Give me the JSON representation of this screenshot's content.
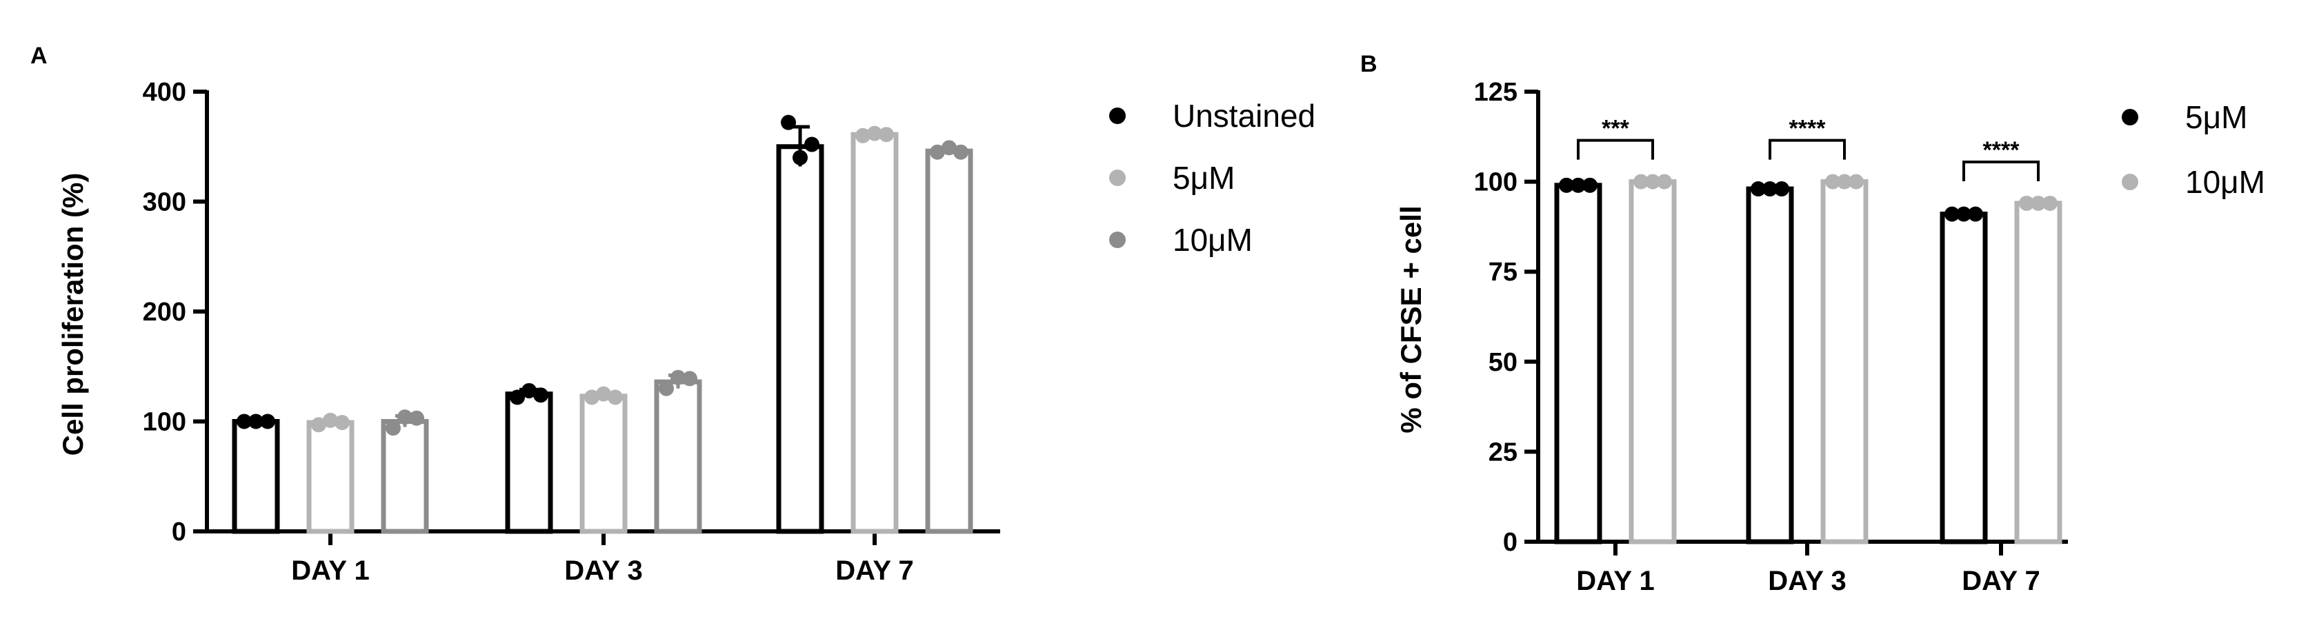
{
  "chart_data": [
    {
      "panel": "A",
      "type": "bar",
      "categories": [
        "DAY 1",
        "DAY 3",
        "DAY 7"
      ],
      "ylabel": "Cell proliferation (%)",
      "xlabel": "",
      "ylim": [
        0,
        400
      ],
      "yticks": [
        0,
        100,
        200,
        300,
        400
      ],
      "legend_position": "right",
      "series": [
        {
          "name": "Unstained",
          "color": "#000000",
          "values": [
            100,
            125,
            350
          ],
          "errors": [
            0,
            4,
            18
          ],
          "points": [
            [
              100,
              100,
              100
            ],
            [
              122,
              128,
              124
            ],
            [
              372,
              340,
              352
            ]
          ]
        },
        {
          "name": "5μM",
          "color": "#b3b3b3",
          "values": [
            99,
            123,
            361
          ],
          "errors": [
            2,
            2,
            3
          ],
          "points": [
            [
              97,
              101,
              99
            ],
            [
              122,
              125,
              122
            ],
            [
              360,
              362,
              361
            ]
          ]
        },
        {
          "name": "10μM",
          "color": "#8c8c8c",
          "values": [
            100,
            136,
            346
          ],
          "errors": [
            5,
            6,
            3
          ],
          "points": [
            [
              94,
              104,
              103
            ],
            [
              130,
              140,
              139
            ],
            [
              345,
              349,
              345
            ]
          ]
        }
      ]
    },
    {
      "panel": "B",
      "type": "bar",
      "categories": [
        "DAY 1",
        "DAY 3",
        "DAY 7"
      ],
      "ylabel": "% of CFSE + cell",
      "xlabel": "",
      "ylim": [
        0,
        125
      ],
      "yticks": [
        0,
        25,
        50,
        75,
        100,
        125
      ],
      "legend_position": "right",
      "significance": [
        "***",
        "****",
        "****"
      ],
      "series": [
        {
          "name": "5μM",
          "color": "#000000",
          "values": [
            99,
            98,
            91
          ],
          "errors": [
            0.5,
            0.5,
            0.6
          ],
          "points": [
            [
              99,
              99,
              99
            ],
            [
              98,
              98,
              98
            ],
            [
              91,
              91,
              91
            ]
          ]
        },
        {
          "name": "10μM",
          "color": "#b3b3b3",
          "values": [
            100,
            100,
            94
          ],
          "errors": [
            0.3,
            0.3,
            0.4
          ],
          "points": [
            [
              100,
              100,
              100
            ],
            [
              100,
              100,
              100
            ],
            [
              94,
              94,
              94
            ]
          ]
        }
      ]
    }
  ]
}
